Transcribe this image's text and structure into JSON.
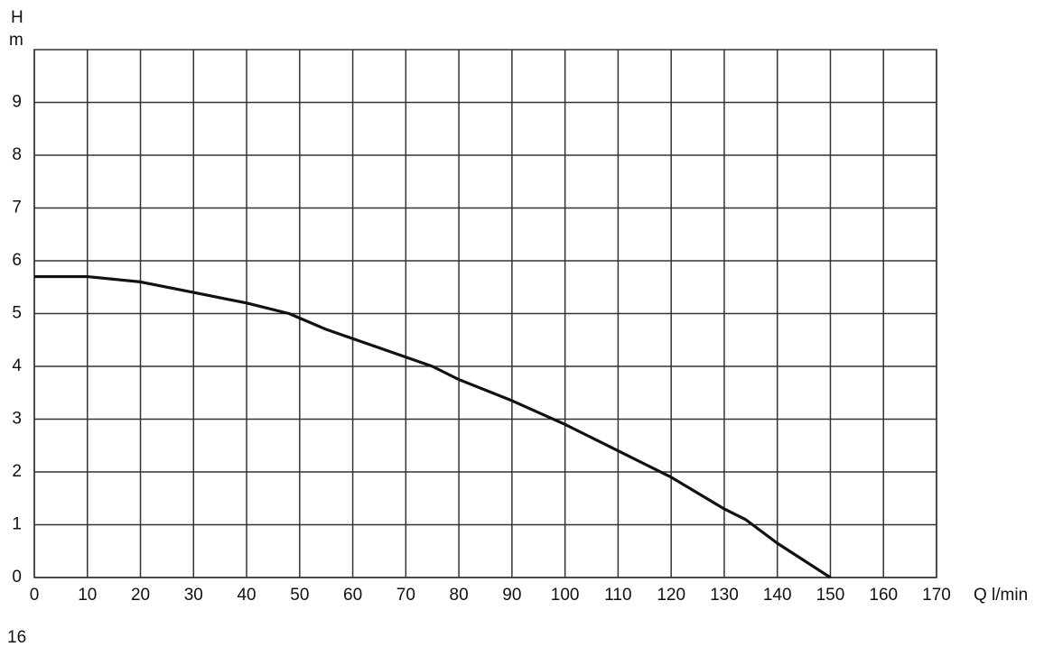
{
  "chart_data": {
    "type": "line",
    "y_label_symbol": "H",
    "y_label_unit": "m",
    "x_label": "Q l/min",
    "x": [
      0,
      10,
      20,
      30,
      40,
      48,
      55,
      65,
      75,
      80,
      90,
      100,
      110,
      120,
      130,
      134,
      140,
      150
    ],
    "series": [
      {
        "name": "H",
        "color": "#111111",
        "values": [
          5.7,
          5.7,
          5.6,
          5.4,
          5.2,
          5.0,
          4.7,
          4.35,
          4.0,
          3.75,
          3.35,
          2.9,
          2.4,
          1.9,
          1.3,
          1.1,
          0.65,
          0
        ]
      }
    ],
    "xlim": [
      0,
      170
    ],
    "xticks": [
      0,
      10,
      20,
      30,
      40,
      50,
      60,
      70,
      80,
      90,
      100,
      110,
      120,
      130,
      140,
      150,
      160,
      170
    ],
    "ylim": [
      0,
      10
    ],
    "yticks": [
      0,
      1,
      2,
      3,
      4,
      5,
      6,
      7,
      8,
      9
    ],
    "grid": true
  },
  "page_number": "16"
}
